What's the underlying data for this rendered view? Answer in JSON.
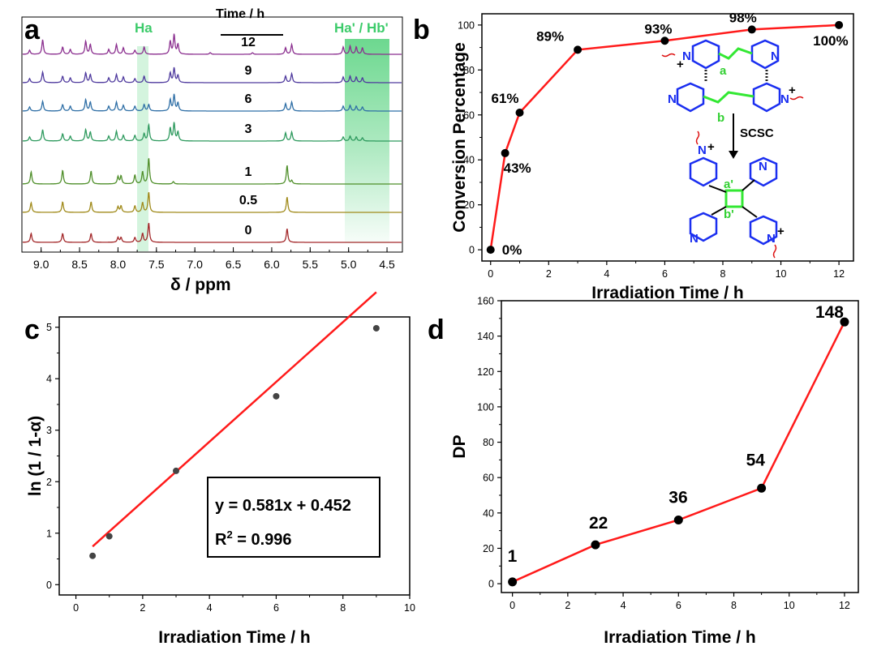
{
  "panels": {
    "a": {
      "letter": "a",
      "xlabel": "δ / ppm",
      "time_header": "Time / h",
      "highlight_labels": [
        "Ha",
        "Ha' / Hb'"
      ],
      "x_ticks": [
        "9.0",
        "8.5",
        "8.0",
        "7.5",
        "7.0",
        "6.5",
        "6.0",
        "5.5",
        "5.0",
        "4.5"
      ],
      "traces": [
        {
          "time": "12",
          "color": "#8b2f8f"
        },
        {
          "time": "9",
          "color": "#4f3a9e"
        },
        {
          "time": "6",
          "color": "#2f6fa6"
        },
        {
          "time": "3",
          "color": "#2e9a5e"
        },
        {
          "time": "1",
          "color": "#4f8f2a"
        },
        {
          "time": "0.5",
          "color": "#a08a1a"
        },
        {
          "time": "0",
          "color": "#a3282a"
        }
      ],
      "highlight_color": "#3ccb6a"
    },
    "b": {
      "letter": "b",
      "mol_labels": {
        "a": "a",
        "b": "b",
        "a_prime": "a'",
        "b_prime": "b'",
        "arrow": "SCSC",
        "n": "N",
        "plus": "+"
      }
    },
    "c": {
      "letter": "c"
    },
    "d": {
      "letter": "d"
    }
  },
  "chart_data": [
    {
      "id": "b",
      "type": "line",
      "xlabel": "Irradiation Time / h",
      "ylabel": "Conversion Percentage",
      "xlim": [
        -0.3,
        12.5
      ],
      "ylim": [
        -5,
        105
      ],
      "xticks": [
        0,
        2,
        4,
        6,
        8,
        10,
        12
      ],
      "yticks": [
        0,
        20,
        40,
        60,
        80,
        100
      ],
      "x": [
        0,
        0.5,
        1,
        3,
        6,
        9,
        12
      ],
      "y": [
        0,
        43,
        61,
        89,
        93,
        98,
        100
      ],
      "point_labels": [
        "0%",
        "43%",
        "61%",
        "89%",
        "93%",
        "98%",
        "100%"
      ],
      "line_color": "#ff1a1a",
      "marker_color": "#000000"
    },
    {
      "id": "c",
      "type": "scatter",
      "xlabel": "Irradiation Time / h",
      "ylabel": "ln (1 / 1-α)",
      "xlim": [
        -0.5,
        10
      ],
      "ylim": [
        -0.2,
        5.2
      ],
      "xticks": [
        0,
        2,
        4,
        6,
        8,
        10
      ],
      "yticks": [
        0,
        1,
        2,
        3,
        4,
        5
      ],
      "x": [
        0.5,
        1,
        3,
        6,
        9
      ],
      "y": [
        0.56,
        0.94,
        2.21,
        3.66,
        4.98
      ],
      "fit": {
        "slope": 0.581,
        "intercept": 0.452,
        "x_range": [
          0.5,
          9
        ],
        "color": "#ff1a1a"
      },
      "annotations": [
        "y = 0.581x + 0.452",
        "R",
        "2",
        " = 0.996"
      ],
      "marker_color": "#444444"
    },
    {
      "id": "d",
      "type": "line",
      "xlabel": "Irradiation Time / h",
      "ylabel": "DP",
      "xlim": [
        -0.4,
        12.5
      ],
      "ylim": [
        -5,
        160
      ],
      "xticks": [
        0,
        2,
        4,
        6,
        8,
        10,
        12
      ],
      "yticks": [
        0,
        20,
        40,
        60,
        80,
        100,
        120,
        140,
        160
      ],
      "x": [
        0,
        3,
        6,
        9,
        12
      ],
      "y": [
        1,
        22,
        36,
        54,
        148
      ],
      "point_labels": [
        "1",
        "22",
        "36",
        "54",
        "148"
      ],
      "line_color": "#ff1a1a",
      "marker_color": "#000000"
    }
  ]
}
